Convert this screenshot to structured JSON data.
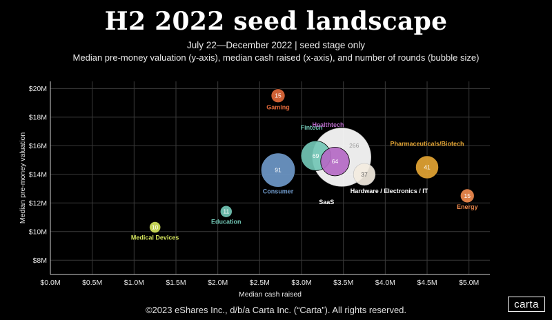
{
  "title": "H2 2022 seed landscape",
  "subtitle": "July 22—December 2022 | seed stage only",
  "subtitle2": "Median pre-money valuation (y-axis), median cash raised (x-axis), and number of rounds (bubble size)",
  "footer": "©2023 eShares Inc., d/b/a Carta Inc. (“Carta”). All rights reserved.",
  "logo": "carta",
  "chart_data": {
    "type": "scatter",
    "xlabel": "Median cash raised",
    "ylabel": "Median pre-money valuation",
    "xlim": [
      0,
      5.25
    ],
    "ylim": [
      7,
      20.5
    ],
    "x_ticks": [
      0,
      0.5,
      1.0,
      1.5,
      2.0,
      2.5,
      3.0,
      3.5,
      4.0,
      4.5,
      5.0
    ],
    "x_tick_labels": [
      "$0.0M",
      "$0.5M",
      "$1.0M",
      "$1.5M",
      "$2.0M",
      "$2.5M",
      "$3.0M",
      "$3.5M",
      "$4.0M",
      "$4.5M",
      "$5.0M"
    ],
    "y_ticks": [
      8,
      10,
      12,
      14,
      16,
      18,
      20
    ],
    "y_tick_labels": [
      "$8M",
      "$10M",
      "$12M",
      "$14M",
      "$16M",
      "$18M",
      "$20M"
    ],
    "grid": true,
    "points": [
      {
        "label": "SaaS",
        "x": 3.48,
        "y": 15.2,
        "rounds": 266,
        "color": "#ffffff"
      },
      {
        "label": "Consumer",
        "x": 2.72,
        "y": 14.3,
        "rounds": 91,
        "color": "#6e98c8"
      },
      {
        "label": "Fintech",
        "x": 3.17,
        "y": 15.3,
        "rounds": 69,
        "color": "#72c6b5"
      },
      {
        "label": "Healthtech",
        "x": 3.4,
        "y": 14.9,
        "rounds": 64,
        "color": "#b469c4"
      },
      {
        "label": "Pharmaceuticals/Biotech",
        "x": 4.5,
        "y": 14.5,
        "rounds": 41,
        "color": "#e3a433"
      },
      {
        "label": "Hardware / Electronics / IT",
        "x": 3.75,
        "y": 14.0,
        "rounds": 37,
        "color": "#f3ebe0"
      },
      {
        "label": "Gaming",
        "x": 2.72,
        "y": 19.5,
        "rounds": 15,
        "color": "#e0683a"
      },
      {
        "label": "Energy",
        "x": 4.98,
        "y": 12.5,
        "rounds": 15,
        "color": "#ef8a4e"
      },
      {
        "label": "Education",
        "x": 2.1,
        "y": 11.4,
        "rounds": 11,
        "color": "#72c6b5"
      },
      {
        "label": "Medical Devices",
        "x": 1.25,
        "y": 10.3,
        "rounds": 10,
        "color": "#d3e35c"
      }
    ]
  }
}
